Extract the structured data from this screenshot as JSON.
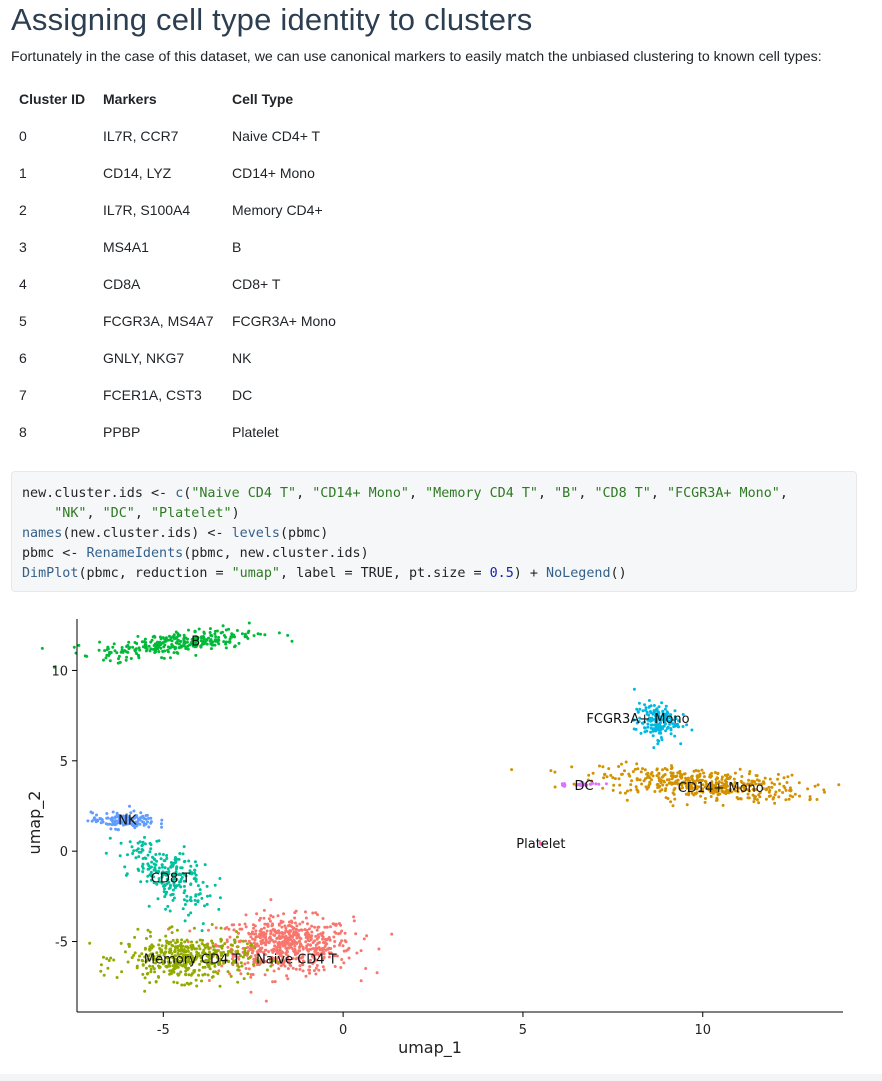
{
  "heading": "Assigning cell type identity to clusters",
  "intro": "Fortunately in the case of this dataset, we can use canonical markers to easily match the unbiased clustering to known cell types:",
  "table": {
    "headers": [
      "Cluster ID",
      "Markers",
      "Cell Type"
    ],
    "rows": [
      [
        "0",
        "IL7R, CCR7",
        "Naive CD4+ T"
      ],
      [
        "1",
        "CD14, LYZ",
        "CD14+ Mono"
      ],
      [
        "2",
        "IL7R, S100A4",
        "Memory CD4+"
      ],
      [
        "3",
        "MS4A1",
        "B"
      ],
      [
        "4",
        "CD8A",
        "CD8+ T"
      ],
      [
        "5",
        "FCGR3A, MS4A7",
        "FCGR3A+ Mono"
      ],
      [
        "6",
        "GNLY, NKG7",
        "NK"
      ],
      [
        "7",
        "FCER1A, CST3",
        "DC"
      ],
      [
        "8",
        "PPBP",
        "Platelet"
      ]
    ]
  },
  "code": {
    "lines": [
      "new.cluster.ids <- c(\"Naive CD4 T\", \"CD14+ Mono\", \"Memory CD4 T\", \"B\", \"CD8 T\", \"FCGR3A+ Mono\",",
      "    \"NK\", \"DC\", \"Platelet\")",
      "names(new.cluster.ids) <- levels(pbmc)",
      "pbmc <- RenameIdents(pbmc, new.cluster.ids)",
      "DimPlot(pbmc, reduction = \"umap\", label = TRUE, pt.size = 0.5) + NoLegend()"
    ]
  },
  "chart_data": {
    "type": "scatter",
    "title": "",
    "xlabel": "umap_1",
    "ylabel": "umap_2",
    "xlim": [
      -7.4,
      13.9
    ],
    "ylim": [
      -8.9,
      13.4
    ],
    "xticks": [
      -5,
      0,
      5,
      10
    ],
    "yticks": [
      -5,
      0,
      5,
      10
    ],
    "grid": false,
    "legend": "none",
    "series": [
      {
        "name": "Naive CD4 T",
        "color": "#F8766D",
        "label_at": [
          -1.3,
          -6.0
        ],
        "center": [
          -1.6,
          -5.2
        ],
        "spread": [
          1.7,
          1.4
        ],
        "angle": 0,
        "n": 620
      },
      {
        "name": "CD14+ Mono",
        "color": "#D39200",
        "label_at": [
          10.5,
          3.5
        ],
        "center": [
          10.0,
          3.7
        ],
        "spread": [
          2.6,
          0.75
        ],
        "angle": -8,
        "n": 460
      },
      {
        "name": "Memory CD4 T",
        "color": "#93AA00",
        "label_at": [
          -4.2,
          -6.0
        ],
        "center": [
          -4.4,
          -5.9
        ],
        "spread": [
          1.6,
          1.15
        ],
        "angle": 0,
        "n": 430
      },
      {
        "name": "B",
        "color": "#00BA38",
        "label_at": [
          -4.1,
          11.6
        ],
        "center": [
          -4.6,
          11.5
        ],
        "spread": [
          2.0,
          0.55
        ],
        "angle": 14,
        "n": 300
      },
      {
        "name": "CD8 T",
        "color": "#00C19F",
        "label_at": [
          -4.8,
          -1.5
        ],
        "center": [
          -4.9,
          -1.2
        ],
        "spread": [
          0.8,
          2.0
        ],
        "angle": 25,
        "n": 240
      },
      {
        "name": "FCGR3A+ Mono",
        "color": "#00B9E3",
        "label_at": [
          8.2,
          7.3
        ],
        "center": [
          8.7,
          7.2
        ],
        "spread": [
          0.55,
          0.9
        ],
        "angle": 0,
        "n": 170
      },
      {
        "name": "NK",
        "color": "#619CFF",
        "label_at": [
          -6.0,
          1.7
        ],
        "center": [
          -6.1,
          1.7
        ],
        "spread": [
          0.8,
          0.4
        ],
        "angle": 0,
        "n": 140
      },
      {
        "name": "DC",
        "color": "#DB72FB",
        "label_at": [
          6.7,
          3.6
        ],
        "center": [
          6.6,
          3.7
        ],
        "spread": [
          0.6,
          0.12
        ],
        "angle": 5,
        "n": 30
      },
      {
        "name": "Platelet",
        "color": "#FF61C3",
        "label_at": [
          5.5,
          0.4
        ],
        "center": [
          5.5,
          0.4
        ],
        "spread": [
          0.05,
          0.05
        ],
        "angle": 0,
        "n": 4
      }
    ]
  }
}
